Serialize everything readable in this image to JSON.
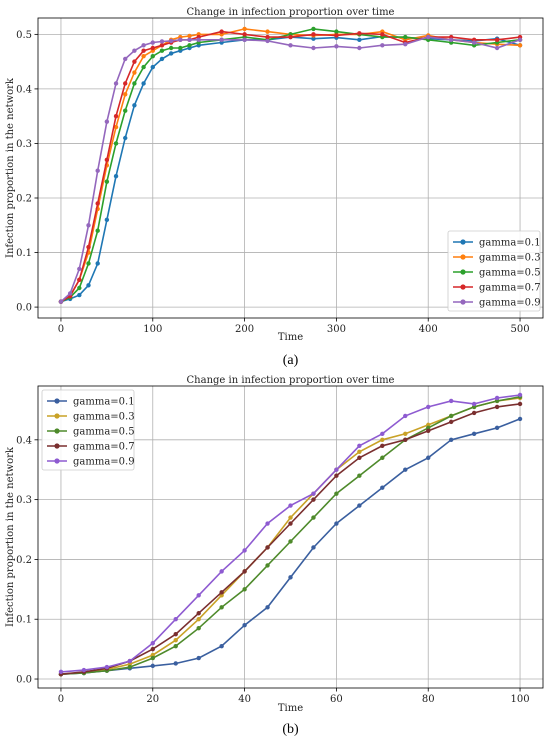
{
  "chart_data": [
    {
      "type": "line",
      "title": "Change in infection proportion over time",
      "xlabel": "Time",
      "ylabel": "Infection proportion in the network",
      "xlim": [
        -25,
        525
      ],
      "ylim": [
        -0.02,
        0.53
      ],
      "xticks": [
        0,
        100,
        200,
        300,
        400,
        500
      ],
      "yticks": [
        0.0,
        0.1,
        0.2,
        0.3,
        0.4,
        0.5
      ],
      "grid": true,
      "legend_position": "lower-right",
      "panel_label": "(a)",
      "x": [
        0,
        10,
        20,
        30,
        40,
        50,
        60,
        70,
        80,
        90,
        100,
        110,
        120,
        130,
        140,
        150,
        175,
        200,
        225,
        250,
        275,
        300,
        325,
        350,
        375,
        400,
        425,
        450,
        475,
        500
      ],
      "series": [
        {
          "name": "gamma=0.1",
          "color": "#1f77b4",
          "values": [
            0.01,
            0.015,
            0.022,
            0.04,
            0.08,
            0.16,
            0.24,
            0.31,
            0.37,
            0.41,
            0.44,
            0.455,
            0.465,
            0.47,
            0.475,
            0.48,
            0.485,
            0.49,
            0.49,
            0.495,
            0.492,
            0.494,
            0.49,
            0.496,
            0.494,
            0.492,
            0.49,
            0.488,
            0.492,
            0.48
          ]
        },
        {
          "name": "gamma=0.3",
          "color": "#ff7f0e",
          "values": [
            0.01,
            0.02,
            0.05,
            0.1,
            0.18,
            0.26,
            0.33,
            0.39,
            0.43,
            0.46,
            0.47,
            0.48,
            0.49,
            0.495,
            0.497,
            0.5,
            0.5,
            0.51,
            0.505,
            0.5,
            0.498,
            0.5,
            0.5,
            0.505,
            0.49,
            0.498,
            0.49,
            0.485,
            0.482,
            0.48
          ]
        },
        {
          "name": "gamma=0.5",
          "color": "#2ca02c",
          "values": [
            0.01,
            0.018,
            0.035,
            0.08,
            0.14,
            0.23,
            0.3,
            0.36,
            0.41,
            0.44,
            0.46,
            0.47,
            0.475,
            0.475,
            0.48,
            0.485,
            0.49,
            0.495,
            0.49,
            0.5,
            0.51,
            0.505,
            0.5,
            0.495,
            0.495,
            0.49,
            0.485,
            0.48,
            0.485,
            0.49
          ]
        },
        {
          "name": "gamma=0.7",
          "color": "#d62728",
          "values": [
            0.01,
            0.02,
            0.05,
            0.11,
            0.19,
            0.27,
            0.35,
            0.41,
            0.45,
            0.47,
            0.475,
            0.48,
            0.485,
            0.49,
            0.49,
            0.495,
            0.505,
            0.5,
            0.495,
            0.495,
            0.5,
            0.498,
            0.502,
            0.5,
            0.485,
            0.495,
            0.495,
            0.49,
            0.49,
            0.495
          ]
        },
        {
          "name": "gamma=0.9",
          "color": "#9467bd",
          "values": [
            0.01,
            0.025,
            0.07,
            0.15,
            0.25,
            0.34,
            0.41,
            0.455,
            0.47,
            0.48,
            0.485,
            0.487,
            0.488,
            0.49,
            0.49,
            0.49,
            0.49,
            0.49,
            0.488,
            0.48,
            0.475,
            0.478,
            0.475,
            0.48,
            0.482,
            0.495,
            0.49,
            0.485,
            0.475,
            0.49
          ]
        }
      ]
    },
    {
      "type": "line",
      "title": "Change in infection proportion over time",
      "xlabel": "Time",
      "ylabel": "Infection proportion in the network",
      "xlim": [
        -5,
        105
      ],
      "ylim": [
        -0.015,
        0.49
      ],
      "xticks": [
        0,
        20,
        40,
        60,
        80,
        100
      ],
      "yticks": [
        0.0,
        0.1,
        0.2,
        0.3,
        0.4
      ],
      "grid": true,
      "legend_position": "upper-left",
      "panel_label": "(b)",
      "x": [
        0,
        5,
        10,
        15,
        20,
        25,
        30,
        35,
        40,
        45,
        50,
        55,
        60,
        65,
        70,
        75,
        80,
        85,
        90,
        95,
        100
      ],
      "series": [
        {
          "name": "gamma=0.1",
          "color": "#3a5f9f",
          "values": [
            0.008,
            0.01,
            0.014,
            0.018,
            0.022,
            0.026,
            0.035,
            0.055,
            0.09,
            0.12,
            0.17,
            0.22,
            0.26,
            0.29,
            0.32,
            0.35,
            0.37,
            0.4,
            0.41,
            0.42,
            0.435
          ]
        },
        {
          "name": "gamma=0.3",
          "color": "#c9a227",
          "values": [
            0.008,
            0.011,
            0.016,
            0.025,
            0.04,
            0.065,
            0.1,
            0.14,
            0.18,
            0.22,
            0.27,
            0.31,
            0.35,
            0.38,
            0.4,
            0.41,
            0.425,
            0.44,
            0.455,
            0.465,
            0.47
          ]
        },
        {
          "name": "gamma=0.5",
          "color": "#4e8a2b",
          "values": [
            0.008,
            0.01,
            0.014,
            0.02,
            0.035,
            0.055,
            0.085,
            0.12,
            0.15,
            0.19,
            0.23,
            0.27,
            0.31,
            0.34,
            0.37,
            0.4,
            0.42,
            0.44,
            0.455,
            0.465,
            0.472
          ]
        },
        {
          "name": "gamma=0.7",
          "color": "#7a2f2f",
          "values": [
            0.008,
            0.012,
            0.018,
            0.03,
            0.05,
            0.075,
            0.11,
            0.145,
            0.18,
            0.22,
            0.26,
            0.3,
            0.34,
            0.37,
            0.39,
            0.4,
            0.415,
            0.43,
            0.445,
            0.455,
            0.46
          ]
        },
        {
          "name": "gamma=0.9",
          "color": "#8e5bd1",
          "values": [
            0.012,
            0.015,
            0.02,
            0.03,
            0.06,
            0.1,
            0.14,
            0.18,
            0.215,
            0.26,
            0.29,
            0.31,
            0.35,
            0.39,
            0.41,
            0.44,
            0.455,
            0.465,
            0.46,
            0.47,
            0.475
          ]
        }
      ]
    }
  ]
}
